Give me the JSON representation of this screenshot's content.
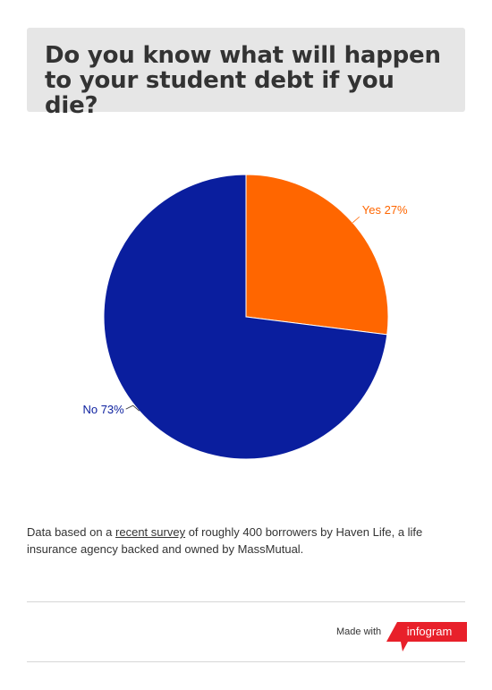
{
  "title": "Do you know what will happen to your student debt if you die?",
  "chart_data": {
    "type": "pie",
    "categories": [
      "Yes",
      "No"
    ],
    "values": [
      27,
      73
    ],
    "labels": [
      "Yes 27%",
      "No 73%"
    ],
    "colors": [
      "#ff6600",
      "#0a1e9e"
    ],
    "label_colors": [
      "#ff6600",
      "#0a1e9e"
    ],
    "start_angle_deg": 0,
    "direction": "clockwise"
  },
  "caption": {
    "before": "Data based on  a ",
    "link": "recent survey",
    "after": " of roughly 400 borrowers by Haven Life, a life insurance agency backed and owned by MassMutual."
  },
  "footer": {
    "made_with": "Made with",
    "brand": "infogram",
    "brand_color": "#e8202a"
  }
}
